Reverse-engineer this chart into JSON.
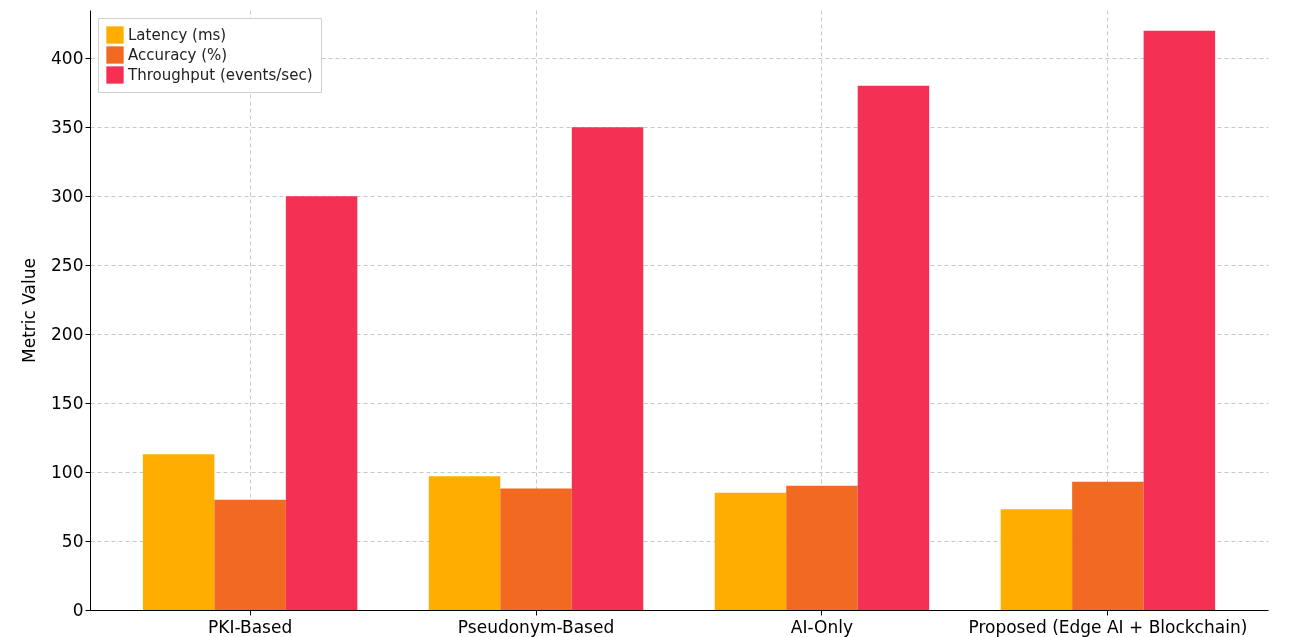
{
  "chart_data": {
    "type": "bar",
    "ylabel": "Metric Value",
    "categories": [
      "PKI-Based",
      "Pseudonym-Based",
      "AI-Only",
      "Proposed (Edge AI + Blockchain)"
    ],
    "series": [
      {
        "name": "Latency (ms)",
        "color": "#ffad00",
        "values": [
          113,
          97,
          85,
          73
        ]
      },
      {
        "name": "Accuracy (%)",
        "color": "#f26922",
        "values": [
          80,
          88,
          90,
          93
        ]
      },
      {
        "name": "Throughput (events/sec)",
        "color": "#f43155",
        "values": [
          300,
          350,
          380,
          420
        ]
      }
    ],
    "ylim": [
      0,
      435
    ],
    "yticks": [
      0,
      50,
      100,
      150,
      200,
      250,
      300,
      350,
      400
    ],
    "grid": true,
    "legend": "top left"
  }
}
